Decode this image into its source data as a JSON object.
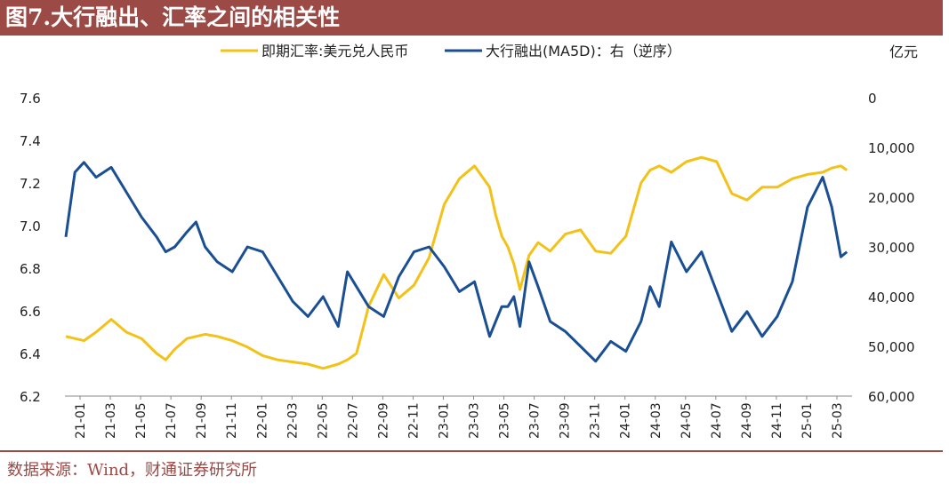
{
  "header": {
    "title": "图7.大行融出、汇率之间的相关性"
  },
  "footer": {
    "source": "数据来源：Wind，财通证券研究所"
  },
  "colors": {
    "title_bg": "#9b4a45",
    "series_fx": "#f2c218",
    "series_lend": "#1a4f94"
  },
  "chart_data": {
    "type": "line",
    "y_left": {
      "lim": [
        6.2,
        7.6
      ],
      "ticks": [
        "7.6",
        "7.4",
        "7.2",
        "7.0",
        "6.8",
        "6.6",
        "6.4",
        "6.2"
      ]
    },
    "y_right": {
      "label": "亿元",
      "lim": [
        0,
        60000
      ],
      "inverted": true,
      "ticks": [
        "0",
        "10,000",
        "20,000",
        "30,000",
        "40,000",
        "50,000",
        "60,000"
      ]
    },
    "x_ticks": [
      "21-01",
      "21-03",
      "21-05",
      "21-07",
      "21-09",
      "21-11",
      "22-01",
      "22-03",
      "22-05",
      "22-07",
      "22-09",
      "22-11",
      "23-01",
      "23-03",
      "23-05",
      "23-07",
      "23-09",
      "23-11",
      "24-01",
      "24-03",
      "24-05",
      "24-07",
      "24-09",
      "24-11",
      "25-01",
      "25-03"
    ],
    "legend_position": "top",
    "series": [
      {
        "name": "即期汇率:美元兑人民币",
        "axis": "left",
        "x": [
          0,
          0.3,
          0.6,
          1,
          1.5,
          2,
          2.5,
          3,
          3.3,
          3.6,
          4,
          4.3,
          4.6,
          5,
          5.5,
          6,
          6.5,
          7,
          7.5,
          8,
          8.5,
          9,
          9.3,
          9.6,
          10,
          10.5,
          11,
          11.5,
          12,
          12.5,
          13,
          13.5,
          14,
          14.2,
          14.4,
          14.6,
          14.8,
          15,
          15.3,
          15.6,
          16,
          16.5,
          17,
          17.5,
          18,
          18.5,
          19,
          19.3,
          19.6,
          20,
          20.5,
          21,
          21.5,
          22,
          22.5,
          23,
          23.5,
          24,
          24.5,
          25,
          25.3,
          25.6,
          25.8
        ],
        "y": [
          6.48,
          6.47,
          6.46,
          6.5,
          6.56,
          6.5,
          6.47,
          6.4,
          6.37,
          6.42,
          6.47,
          6.48,
          6.49,
          6.48,
          6.46,
          6.43,
          6.39,
          6.37,
          6.36,
          6.35,
          6.33,
          6.35,
          6.37,
          6.4,
          6.62,
          6.77,
          6.66,
          6.72,
          6.85,
          7.1,
          7.22,
          7.28,
          7.18,
          7.05,
          6.95,
          6.9,
          6.82,
          6.7,
          6.86,
          6.92,
          6.88,
          6.96,
          6.98,
          6.88,
          6.87,
          6.95,
          7.2,
          7.26,
          7.28,
          7.25,
          7.3,
          7.32,
          7.3,
          7.15,
          7.12,
          7.18,
          7.18,
          7.22,
          7.24,
          7.25,
          7.27,
          7.28,
          7.26
        ]
      },
      {
        "name": "大行融出(MA5D)：右（逆序）",
        "axis": "right",
        "x": [
          0,
          0.3,
          0.6,
          1,
          1.5,
          2,
          2.5,
          3,
          3.3,
          3.6,
          4,
          4.3,
          4.6,
          5,
          5.5,
          6,
          6.5,
          7,
          7.5,
          8,
          8.5,
          9,
          9.3,
          9.6,
          10,
          10.5,
          11,
          11.5,
          12,
          12.5,
          13,
          13.5,
          14,
          14.2,
          14.4,
          14.6,
          14.8,
          15,
          15.3,
          15.6,
          16,
          16.5,
          17,
          17.5,
          18,
          18.5,
          19,
          19.3,
          19.6,
          20,
          20.5,
          21,
          21.5,
          22,
          22.5,
          23,
          23.5,
          24,
          24.5,
          25,
          25.3,
          25.6,
          25.8
        ],
        "y": [
          28000,
          15000,
          13000,
          16000,
          14000,
          19000,
          24000,
          28000,
          31000,
          30000,
          27000,
          25000,
          30000,
          33000,
          35000,
          30000,
          31000,
          36000,
          41000,
          44000,
          40000,
          46000,
          35000,
          38000,
          42000,
          44000,
          36000,
          31000,
          30000,
          34000,
          39000,
          37000,
          48000,
          45000,
          42000,
          42000,
          40000,
          46000,
          33000,
          38000,
          45000,
          47000,
          50000,
          53000,
          49000,
          51000,
          45000,
          38000,
          42000,
          29000,
          35000,
          31000,
          39000,
          47000,
          43000,
          48000,
          44000,
          37000,
          22000,
          16000,
          22000,
          32000,
          31000
        ]
      }
    ]
  }
}
